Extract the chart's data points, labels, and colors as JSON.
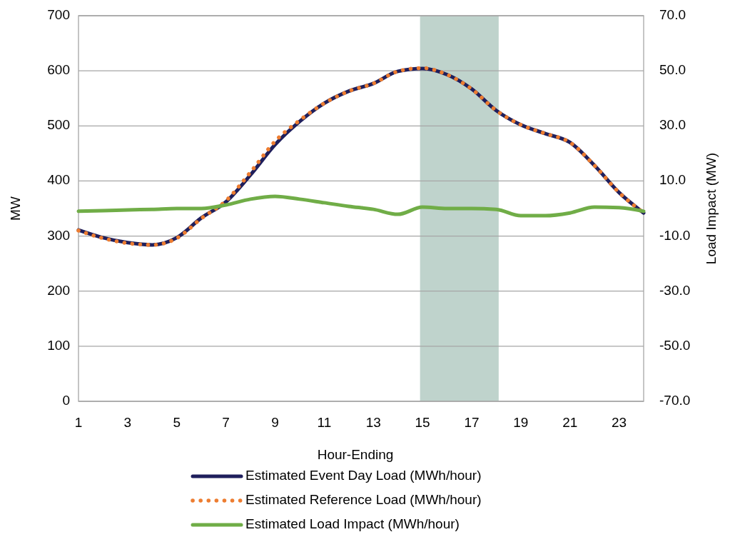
{
  "chart_data": {
    "type": "line",
    "xlabel": "Hour-Ending",
    "ylabel": "MW",
    "y2label": "Load Impact (MW)",
    "x": [
      1,
      2,
      3,
      4,
      5,
      6,
      7,
      8,
      9,
      10,
      11,
      12,
      13,
      14,
      15,
      16,
      17,
      18,
      19,
      20,
      21,
      22,
      23,
      24
    ],
    "xlim": [
      1,
      24
    ],
    "xticks": [
      1,
      3,
      5,
      7,
      9,
      11,
      13,
      15,
      17,
      19,
      21,
      23
    ],
    "ylim": [
      0,
      700
    ],
    "yticks": [
      0,
      100,
      200,
      300,
      400,
      500,
      600,
      700
    ],
    "y2lim": [
      -70,
      70
    ],
    "y2ticks": [
      {
        "value": -70,
        "label": "-70.0"
      },
      {
        "value": -50,
        "label": "-50.0"
      },
      {
        "value": -30,
        "label": "-30.0"
      },
      {
        "value": -10,
        "label": "-10.0"
      },
      {
        "value": 10,
        "label": "10.0"
      },
      {
        "value": 30,
        "label": "30.0"
      },
      {
        "value": 50,
        "label": "50.0"
      },
      {
        "value": 70,
        "label": "70.0"
      }
    ],
    "grid": "y",
    "legend": "bottom",
    "bands": [
      {
        "axis": "x",
        "from": 14.9,
        "to": 18.1,
        "color": "#bfd3cc"
      }
    ],
    "series": [
      {
        "name": "Estimated Event Day Load (MWh/hour)",
        "color": "#1f1f5c",
        "line_style": "solid",
        "values": [
          311,
          297,
          288,
          284,
          297,
          333,
          362,
          411,
          466,
          508,
          541,
          563,
          577,
          599,
          604,
          593,
          567,
          528,
          502,
          486,
          470,
          428,
          379,
          342
        ]
      },
      {
        "name": "Estimated Reference Load (MWh/hour)",
        "color": "#ed7d31",
        "line_style": "dotted",
        "values": [
          310,
          296,
          287,
          284,
          296,
          332,
          364,
          416,
          472,
          510,
          541,
          563,
          577,
          599,
          605,
          593,
          567,
          528,
          502,
          486,
          470,
          428,
          379,
          342
        ]
      },
      {
        "name": "Estimated Load Impact (MWh/hour)",
        "color": "#70ad47",
        "line_style": "solid",
        "axis": "y2",
        "values": [
          -1.0,
          -0.8,
          -0.5,
          -0.3,
          0,
          0,
          1.3,
          3.4,
          4.4,
          3.4,
          2.1,
          0.8,
          -0.3,
          -2.1,
          0.5,
          0,
          0,
          -0.3,
          -2.6,
          -2.6,
          -1.6,
          0.5,
          0.3,
          -1.0
        ]
      }
    ]
  }
}
